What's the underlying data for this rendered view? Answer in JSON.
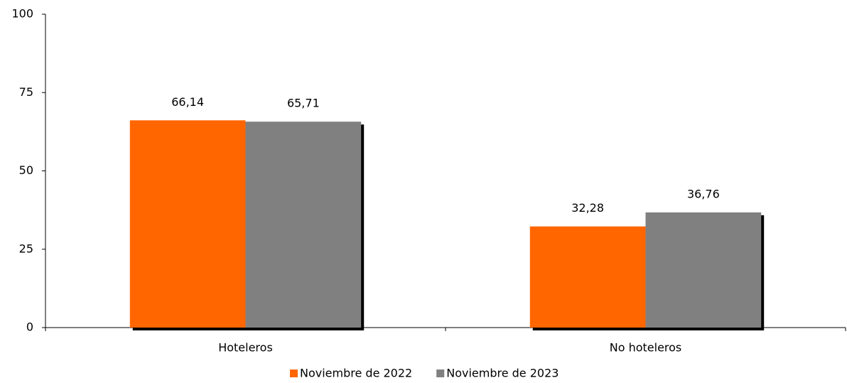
{
  "chart_data": {
    "type": "bar",
    "categories": [
      "Hoteleros",
      "No hoteleros"
    ],
    "series": [
      {
        "name": "Noviembre de 2022",
        "color": "#ff6600",
        "values": [
          66.14,
          32.28
        ],
        "value_labels": [
          "66,14",
          "32,28"
        ]
      },
      {
        "name": "Noviembre de 2023",
        "color": "#808080",
        "values": [
          65.71,
          36.76
        ],
        "value_labels": [
          "65,71",
          "36,76"
        ]
      }
    ],
    "ylim": [
      0,
      100
    ],
    "yticks": [
      0,
      25,
      50,
      75,
      100
    ],
    "grid": false,
    "legend": "bottom"
  }
}
